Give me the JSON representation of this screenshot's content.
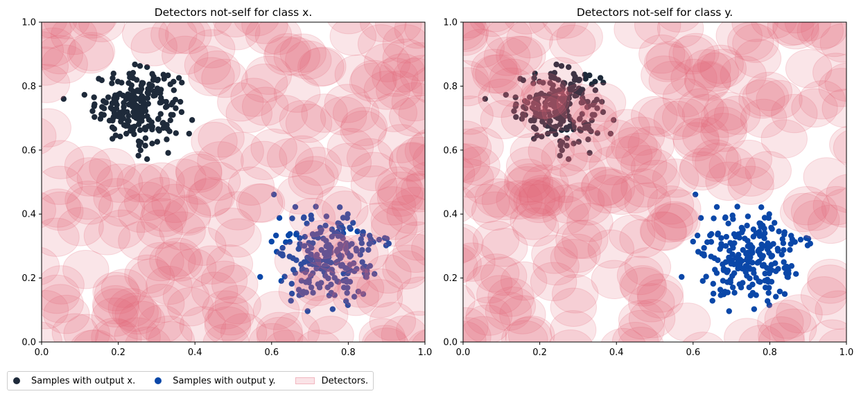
{
  "chart_data": [
    {
      "type": "scatter",
      "title": "Detectors not-self for class x.",
      "xlim": [
        0,
        1
      ],
      "ylim": [
        0,
        1
      ],
      "xticks": [
        "0.0",
        "0.2",
        "0.4",
        "0.6",
        "0.8",
        "1.0"
      ],
      "yticks": [
        "0.0",
        "0.2",
        "0.4",
        "0.6",
        "0.8",
        "1.0"
      ],
      "grid": false,
      "detector_radius": 0.06,
      "series": [
        {
          "name": "Samples with output x.",
          "color": "#1e2a3a",
          "center": [
            0.25,
            0.74
          ],
          "spread": [
            0.055,
            0.055
          ],
          "count": 230
        },
        {
          "name": "Samples with output y.",
          "color": "#0a47a8",
          "center": [
            0.75,
            0.26
          ],
          "spread": [
            0.065,
            0.07
          ],
          "count": 230
        }
      ],
      "detectors": {
        "name": "Detectors.",
        "color": "#e36478",
        "avoid": "Samples with output x."
      }
    },
    {
      "type": "scatter",
      "title": "Detectors not-self for class y.",
      "xlim": [
        0,
        1
      ],
      "ylim": [
        0,
        1
      ],
      "xticks": [
        "0.0",
        "0.2",
        "0.4",
        "0.6",
        "0.8",
        "1.0"
      ],
      "yticks": [
        "0.0",
        "0.2",
        "0.4",
        "0.6",
        "0.8",
        "1.0"
      ],
      "grid": false,
      "detector_radius": 0.06,
      "series": [
        {
          "name": "Samples with output x.",
          "color": "#1e2a3a",
          "center": [
            0.25,
            0.74
          ],
          "spread": [
            0.055,
            0.055
          ],
          "count": 230
        },
        {
          "name": "Samples with output y.",
          "color": "#0a47a8",
          "center": [
            0.75,
            0.26
          ],
          "spread": [
            0.065,
            0.07
          ],
          "count": 230
        }
      ],
      "detectors": {
        "name": "Detectors.",
        "color": "#e36478",
        "avoid": "Samples with output y."
      }
    }
  ],
  "legend": {
    "placement": "bottom-left",
    "items": [
      {
        "label": "Samples with output x.",
        "color": "#1e2a3a",
        "kind": "marker"
      },
      {
        "label": "Samples with output y.",
        "color": "#0a47a8",
        "kind": "marker"
      },
      {
        "label": "Detectors.",
        "color": "#e36478",
        "kind": "patch"
      }
    ]
  }
}
